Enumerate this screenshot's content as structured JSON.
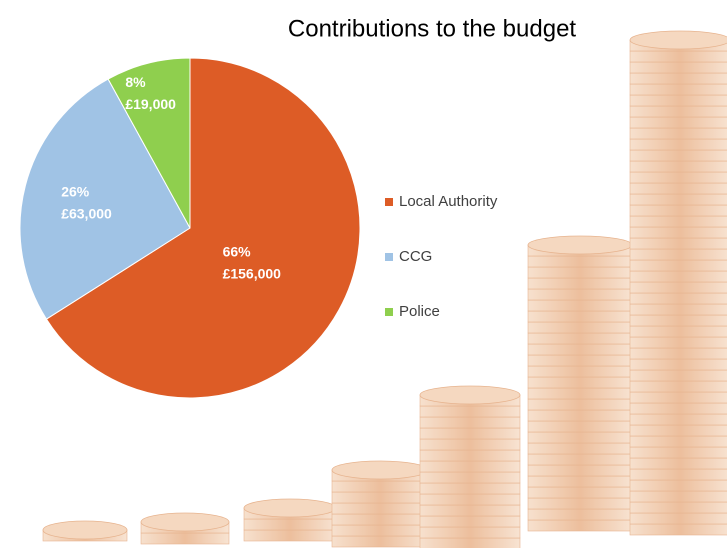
{
  "chart_data": {
    "type": "pie",
    "title": "Contributions to the budget",
    "categories": [
      "Local Authority",
      "CCG",
      "Police"
    ],
    "values": [
      66,
      26,
      8
    ],
    "value_labels": [
      "66%",
      "26%",
      "8%"
    ],
    "amounts": [
      156000,
      63000,
      19000
    ],
    "amount_labels": [
      "£156,000",
      "£63,000",
      "£19,000"
    ],
    "colors": [
      "#dd5c26",
      "#a0c3e5",
      "#8fcf4e"
    ],
    "legend": "right"
  }
}
